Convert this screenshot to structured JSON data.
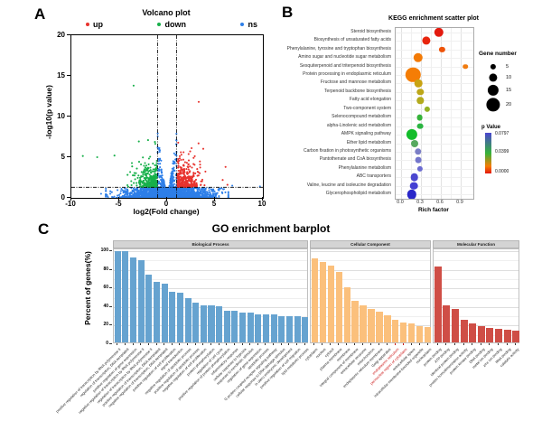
{
  "figure": {
    "background": "#ffffff"
  },
  "chart_data": [
    {
      "panel_label": "A",
      "type": "scatter",
      "title": "Volcano plot",
      "xlabel": "log2(Fold change)",
      "ylabel": "-log10(p value)",
      "xlim": [
        -10,
        10
      ],
      "ylim": [
        0,
        20
      ],
      "xticks": [
        "-10",
        "-5",
        "0",
        "5",
        "10"
      ],
      "yticks": [
        "0",
        "5",
        "10",
        "15",
        "20"
      ],
      "grid": false,
      "legend_position": "top",
      "legend": [
        {
          "label": "up",
          "color": "#e8332e"
        },
        {
          "label": "down",
          "color": "#17b04a"
        },
        {
          "label": "ns",
          "color": "#2e7fe8"
        }
      ],
      "thresholds": {
        "vlines": [
          -1,
          1
        ],
        "hline": 1.3,
        "line_style": "dash-dot",
        "line_color": "#000000"
      },
      "point_clusters": {
        "seed": 42,
        "ns_base": {
          "n": 2300,
          "x_sigma": 2.0,
          "x_clamp": 6.4,
          "y_max": 1.25
        },
        "ns_wide": {
          "n": 260,
          "x_sigma": 3.2,
          "x_clamp": 6.4,
          "y_max": 1.2
        },
        "ns_wedge": {
          "n": 700,
          "x_clamp": 0.98,
          "y_peak": 8.3
        },
        "down": {
          "n": 340,
          "x_from": -1.05,
          "x_min": -5.6,
          "y_from": 1.32,
          "y_max": 9.4
        },
        "up": {
          "n": 370,
          "x_from": 1.05,
          "x_max": 6.2,
          "y_from": 1.32,
          "y_max": 7.6
        }
      },
      "outlier_points": {
        "up": [
          [
            3.3,
            11.8
          ],
          [
            6.1,
            3.8
          ],
          [
            5.8,
            2.2
          ],
          [
            6.3,
            1.6
          ]
        ],
        "down": [
          [
            -3.5,
            13.8
          ],
          [
            -8.8,
            5.15
          ],
          [
            -7.3,
            5.0
          ],
          [
            -5.5,
            5.2
          ]
        ],
        "ns": [
          [
            9.7,
            1.4
          ],
          [
            6.8,
            1.5
          ],
          [
            -6.9,
            0.5
          ]
        ]
      }
    },
    {
      "panel_label": "B",
      "type": "scatter",
      "title": "KEGG enrichment scatter plot",
      "xlabel": "Rich factor",
      "xticks": [
        "0.0",
        "0.3",
        "0.6",
        "0.9"
      ],
      "xlim": [
        0,
        1.01
      ],
      "grid": true,
      "legend_size": {
        "title": "Gene number",
        "values": [
          "5",
          "10",
          "15",
          "20"
        ]
      },
      "legend_color": {
        "title": "p Value",
        "tick_labels": [
          "0.0797",
          "0.0399",
          "0.0000"
        ],
        "gradient": [
          "#4b45d0",
          "#35b33a",
          "#f57d05",
          "#e3170d"
        ]
      },
      "pathways": [
        {
          "name": "Steroid biosynthesis",
          "rich": 0.57,
          "genes": 12,
          "color": "#e31a0f"
        },
        {
          "name": "Biosynthesis of unsaturated fatty acids",
          "rich": 0.38,
          "genes": 10,
          "color": "#e8250d"
        },
        {
          "name": "Phenylalanine, tyrosine and tryptophan biosynthesis",
          "rich": 0.62,
          "genes": 5,
          "color": "#ee5309"
        },
        {
          "name": "Amino sugar and nucleotide sugar metabolism",
          "rich": 0.26,
          "genes": 12,
          "color": "#f37a06"
        },
        {
          "name": "Sesquiterpenoid and triterpenoid biosynthesis",
          "rich": 0.97,
          "genes": 4,
          "color": "#f07c10"
        },
        {
          "name": "Protein processing in endoplasmic reticulum",
          "rich": 0.18,
          "genes": 22,
          "color": "#f57d05"
        },
        {
          "name": "Fructose and mannose metabolism",
          "rich": 0.26,
          "genes": 9,
          "color": "#c8a312"
        },
        {
          "name": "Terpenoid backbone biosynthesis",
          "rich": 0.29,
          "genes": 7,
          "color": "#bda719"
        },
        {
          "name": "Fatty acid elongation",
          "rich": 0.29,
          "genes": 7,
          "color": "#b3aa1e"
        },
        {
          "name": "Two-component system",
          "rich": 0.39,
          "genes": 5,
          "color": "#93b224"
        },
        {
          "name": "Selenocompound metabolism",
          "rich": 0.28,
          "genes": 6,
          "color": "#35b33a"
        },
        {
          "name": "alpha-Linolenic acid metabolism",
          "rich": 0.29,
          "genes": 6,
          "color": "#2bb542"
        },
        {
          "name": "AMPK signaling pathway",
          "rich": 0.16,
          "genes": 15,
          "color": "#14bd2b"
        },
        {
          "name": "Ether lipid metabolism",
          "rich": 0.21,
          "genes": 8,
          "color": "#57a95f"
        },
        {
          "name": "Carbon fixation in photosynthetic organisms",
          "rich": 0.26,
          "genes": 7,
          "color": "#7b7ec6"
        },
        {
          "name": "Pantothenate and CoA biosynthesis",
          "rich": 0.26,
          "genes": 6,
          "color": "#7476cb"
        },
        {
          "name": "Phenylalanine metabolism",
          "rich": 0.29,
          "genes": 5,
          "color": "#6b6bd1"
        },
        {
          "name": "ABC transporters",
          "rich": 0.2,
          "genes": 9,
          "color": "#4c48d0"
        },
        {
          "name": "Valine, leucine and isoleucine degradation",
          "rich": 0.19,
          "genes": 9,
          "color": "#443fd3"
        },
        {
          "name": "Glycerophospholipid metabolism",
          "rich": 0.16,
          "genes": 12,
          "color": "#2a27c9"
        }
      ]
    },
    {
      "panel_label": "C",
      "type": "bar",
      "title": "GO enrichment barplot",
      "ylabel": "Percent of genes(%)",
      "yticks": [
        "0",
        "20",
        "40",
        "60",
        "80",
        "100"
      ],
      "ylim": [
        0,
        100
      ],
      "grid": true,
      "facets": [
        {
          "name": "Biological Process",
          "bar_color": "#66a3d0",
          "red_label_indices": [],
          "bars": [
            {
              "label": "positive regulation of transcription by RNA polymerase II",
              "value": 98
            },
            {
              "label": "regulation of transcription, DNA-templated",
              "value": 98
            },
            {
              "label": "positive regulation of gene expression",
              "value": 91
            },
            {
              "label": "negative regulation of transcription by RNA polymerase II",
              "value": 88
            },
            {
              "label": "regulation of transcription by RNA polymerase II",
              "value": 73
            },
            {
              "label": "positive regulation of transcription, DNA-templated",
              "value": 65
            },
            {
              "label": "negative regulation of transcription, DNA-templated",
              "value": 63
            },
            {
              "label": "positive regulation of cell proliferation",
              "value": 54
            },
            {
              "label": "signal transduction",
              "value": 53
            },
            {
              "label": "negative regulation of apoptotic process",
              "value": 48
            },
            {
              "label": "positive regulation of apoptotic process",
              "value": 43
            },
            {
              "label": "negative regulation of cell proliferation",
              "value": 40
            },
            {
              "label": "protein phosphorylation",
              "value": 40
            },
            {
              "label": "regulation of cell cycle",
              "value": 39
            },
            {
              "label": "positive regulation of protein phosphorylation",
              "value": 34
            },
            {
              "label": "inflammatory response",
              "value": 34
            },
            {
              "label": "cellular response to hypoxia",
              "value": 32
            },
            {
              "label": "response to xenobiotic stimulus",
              "value": 32
            },
            {
              "label": "regulation of gene expression",
              "value": 30
            },
            {
              "label": "apoptotic process",
              "value": 30
            },
            {
              "label": "G protein-coupled receptor signaling pathway",
              "value": 30
            },
            {
              "label": "cellular response to DNA damage stimulus",
              "value": 28
            },
            {
              "label": "in utero embryonic development",
              "value": 28
            },
            {
              "label": "positive regulation of cell migration",
              "value": 28
            },
            {
              "label": "lipid metabolic process",
              "value": 27
            }
          ]
        },
        {
          "name": "Cellular Component",
          "bar_color": "#fbc07c",
          "red_label_indices": [
            10,
            11
          ],
          "bars": [
            {
              "label": "cytoplasm",
              "value": 90
            },
            {
              "label": "nucleus",
              "value": 86
            },
            {
              "label": "cytosol",
              "value": 83
            },
            {
              "label": "plasma membrane",
              "value": 76
            },
            {
              "label": "membrane",
              "value": 59
            },
            {
              "label": "integral component of membrane",
              "value": 45
            },
            {
              "label": "extracellular exosome",
              "value": 40
            },
            {
              "label": "mitochondrion",
              "value": 36
            },
            {
              "label": "endoplasmic reticulum membrane",
              "value": 33
            },
            {
              "label": "Golgi apparatus",
              "value": 29
            },
            {
              "label": "endoplasmic reticulum",
              "value": 24
            },
            {
              "label": "perinuclear region of cytoplasm",
              "value": 21
            },
            {
              "label": "extracellular space",
              "value": 20
            },
            {
              "label": "intracellular membrane-bounded organelle",
              "value": 18
            },
            {
              "label": "nucleoplasm",
              "value": 17
            }
          ]
        },
        {
          "name": "Molecular Function",
          "bar_color": "#cf4e46",
          "red_label_indices": [],
          "bars": [
            {
              "label": "protein binding",
              "value": 82
            },
            {
              "label": "ATP binding",
              "value": 40
            },
            {
              "label": "identical protein binding",
              "value": 36
            },
            {
              "label": "protein homodimerization activity",
              "value": 24
            },
            {
              "label": "protein kinase binding",
              "value": 20
            },
            {
              "label": "DNA binding",
              "value": 18
            },
            {
              "label": "metal ion binding",
              "value": 16
            },
            {
              "label": "zinc ion binding",
              "value": 15
            },
            {
              "label": "RNA binding",
              "value": 14
            },
            {
              "label": "catalytic activity",
              "value": 13
            }
          ]
        }
      ]
    }
  ]
}
